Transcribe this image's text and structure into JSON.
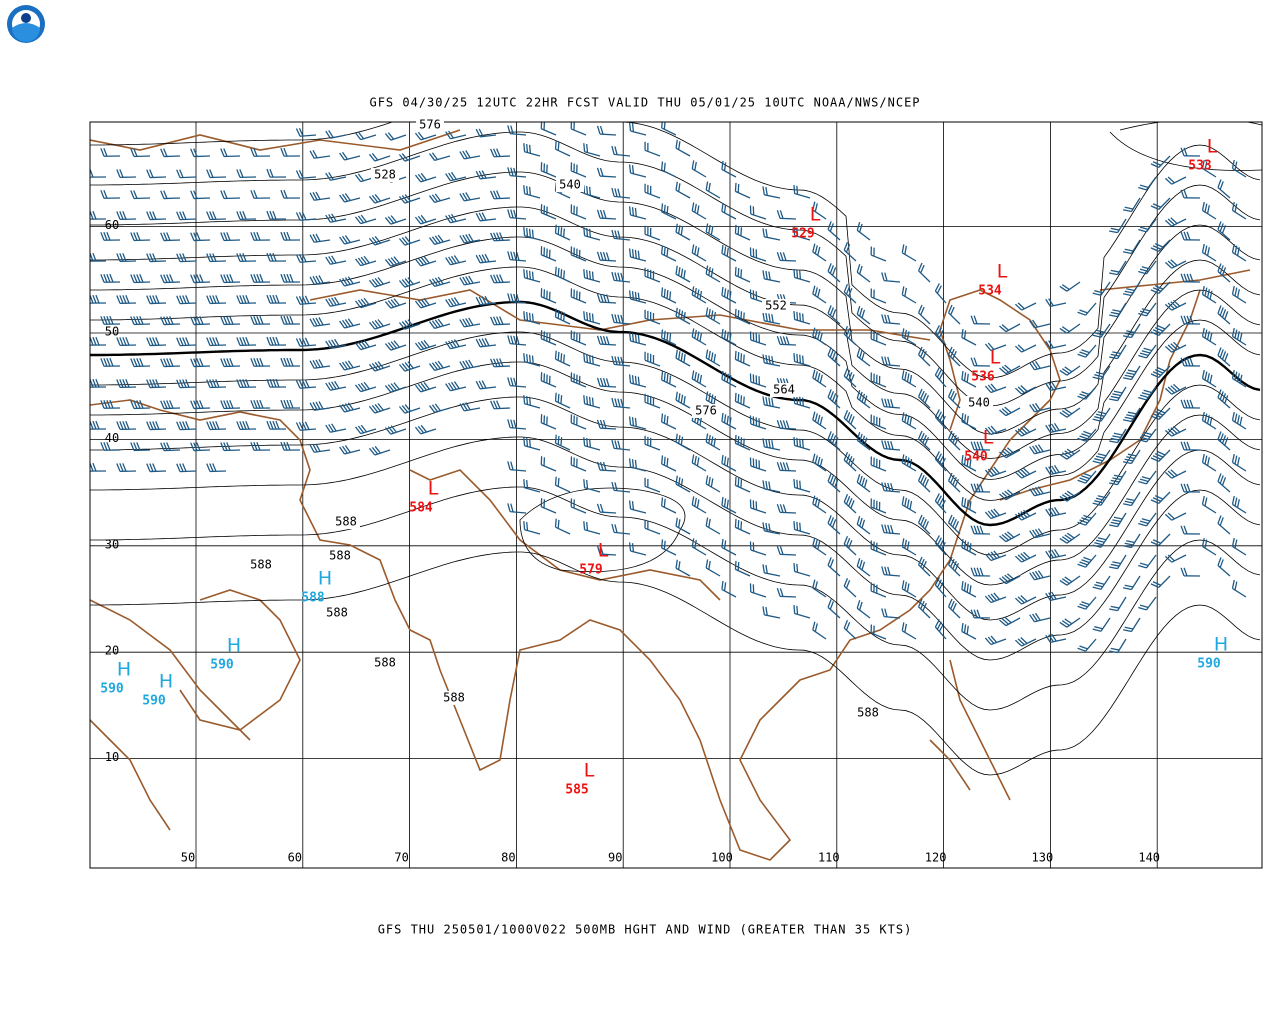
{
  "header": {
    "title": "GFS 04/30/25 12UTC 22HR FCST VALID THU 05/01/25 10UTC NOAA/NWS/NCEP"
  },
  "footer": {
    "caption": "GFS THU 250501/1000V022 500MB HGHT AND WIND (GREATER THAN 35 KTS)"
  },
  "map": {
    "lon_ticks": [
      50,
      60,
      70,
      80,
      90,
      100,
      110,
      120,
      130,
      140
    ],
    "lat_ticks": [
      10,
      20,
      30,
      40,
      50,
      60
    ],
    "contour_labels": [
      576,
      528,
      540,
      552,
      564,
      576,
      540,
      588,
      588,
      588,
      588,
      588,
      588,
      588
    ],
    "systems": [
      {
        "letter": "L",
        "value": 533,
        "color": "#ee1111"
      },
      {
        "letter": "L",
        "value": 529,
        "color": "#ee1111"
      },
      {
        "letter": "L",
        "value": 534,
        "color": "#ee1111"
      },
      {
        "letter": "L",
        "value": 536,
        "color": "#ee1111"
      },
      {
        "letter": "L",
        "value": 540,
        "color": "#ee1111"
      },
      {
        "letter": "L",
        "value": 584,
        "color": "#ee1111"
      },
      {
        "letter": "L",
        "value": 579,
        "color": "#ee1111"
      },
      {
        "letter": "L",
        "value": 585,
        "color": "#ee1111"
      },
      {
        "letter": "H",
        "value": 588,
        "color": "#1fa8e0"
      },
      {
        "letter": "H",
        "value": 590,
        "color": "#1fa8e0"
      },
      {
        "letter": "H",
        "value": 590,
        "color": "#1fa8e0"
      },
      {
        "letter": "H",
        "value": 590,
        "color": "#1fa8e0"
      },
      {
        "letter": "H",
        "value": 590,
        "color": "#1fa8e0"
      }
    ]
  }
}
